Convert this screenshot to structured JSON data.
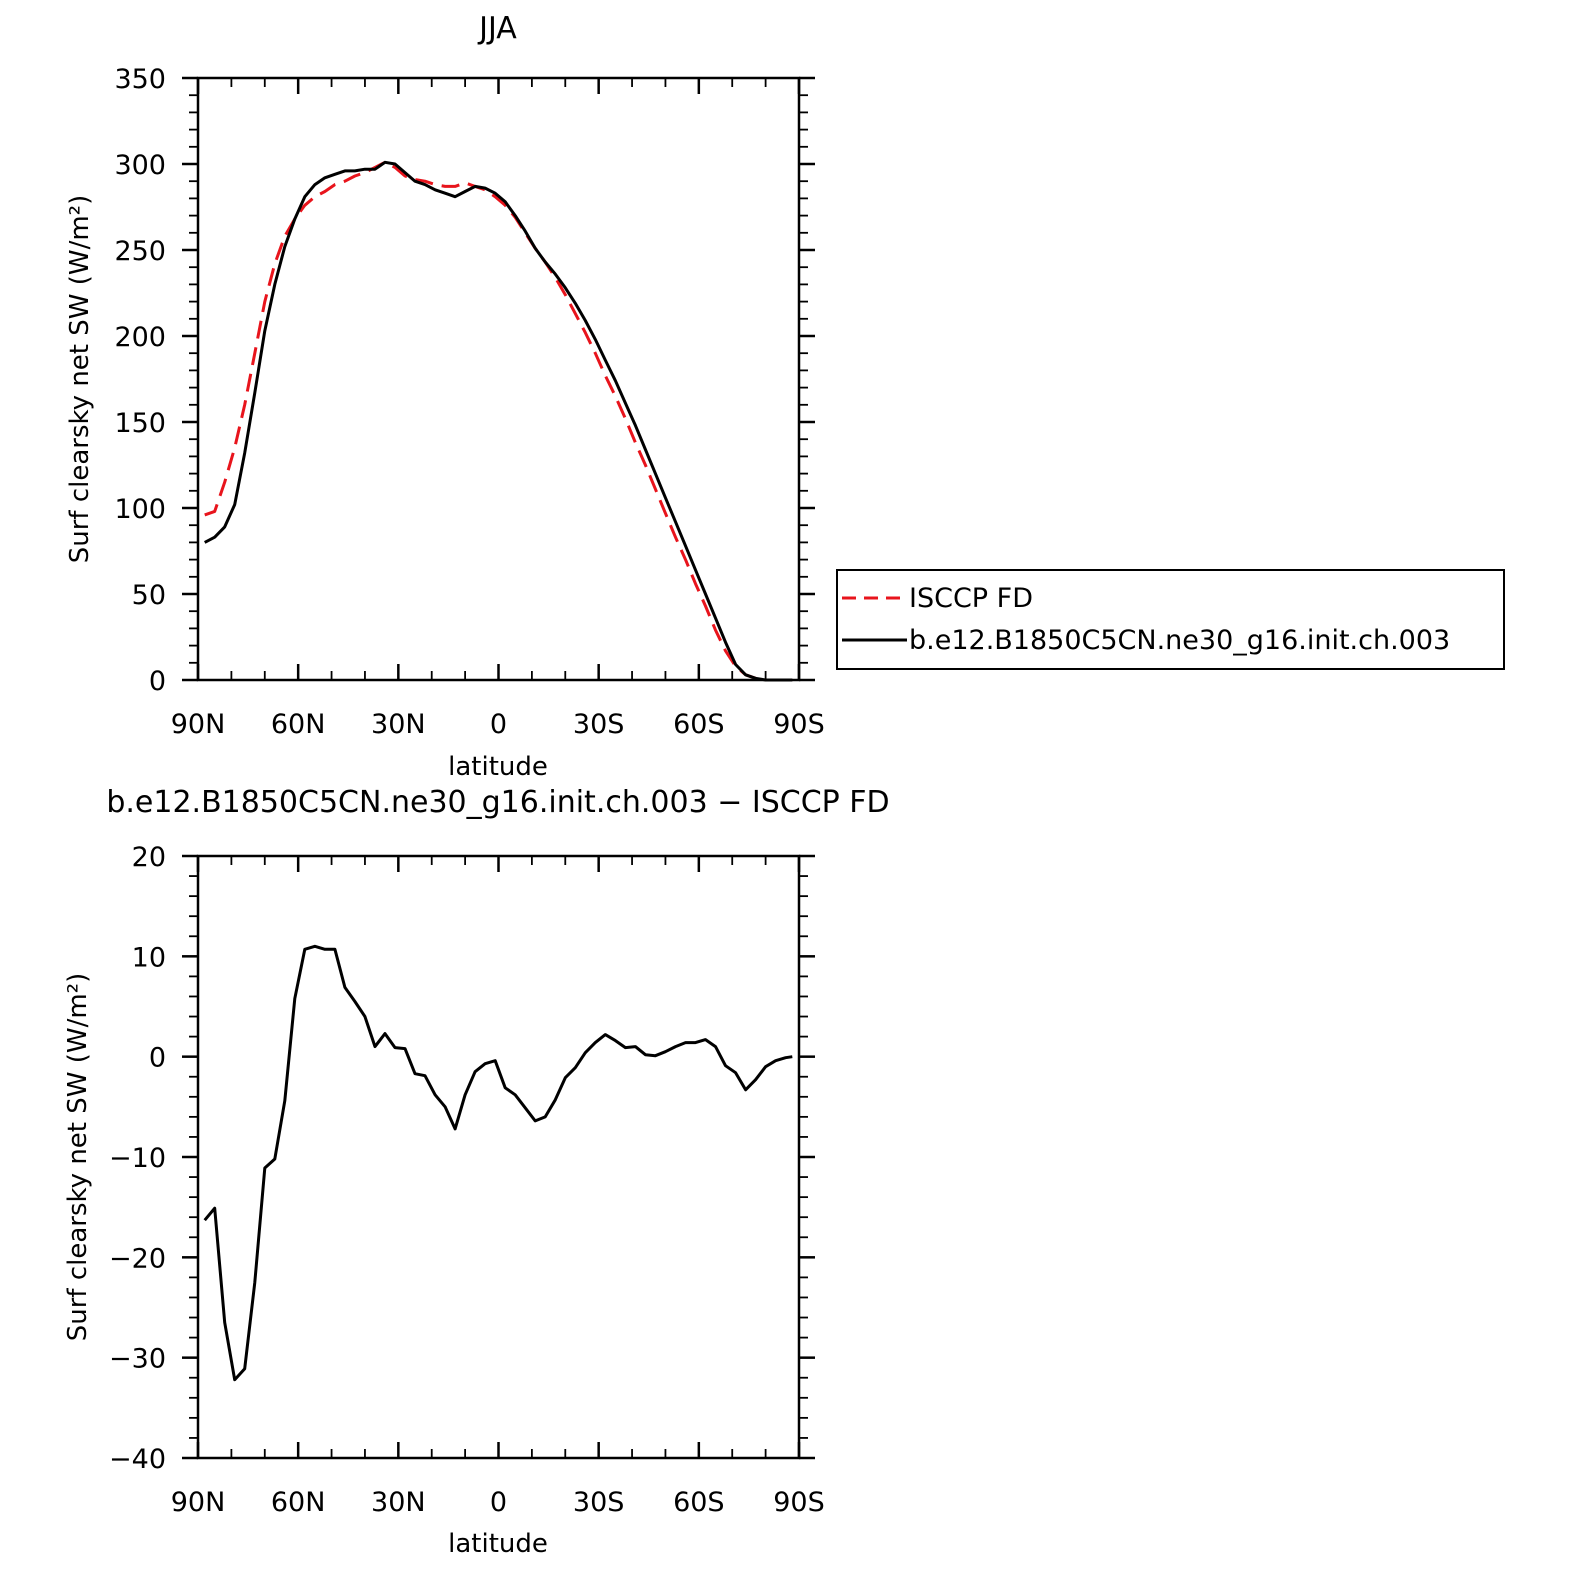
{
  "chart_data": [
    {
      "type": "line",
      "title": "JJA",
      "xlabel": "latitude",
      "ylabel": "Surf clearsky net SW (W/m²)",
      "x_ticks": [
        90,
        60,
        30,
        0,
        -30,
        -60,
        -90
      ],
      "x_tick_labels": [
        "90N",
        "60N",
        "30N",
        "0",
        "30S",
        "60S",
        "90S"
      ],
      "xlim": [
        90,
        -90
      ],
      "ylim": [
        0,
        350
      ],
      "y_ticks": [
        0,
        50,
        100,
        150,
        200,
        250,
        300,
        350
      ],
      "y_tick_labels": [
        "0",
        "50",
        "100",
        "150",
        "200",
        "250",
        "300",
        "350"
      ],
      "legend_position": "right",
      "series": [
        {
          "name": "ISCCP FD",
          "color": "#e8141c",
          "dash": "dashed",
          "x": [
            88,
            85,
            82,
            79,
            76,
            73,
            70,
            67,
            64,
            61,
            58,
            55,
            52,
            49,
            46,
            43,
            40,
            37,
            34,
            31,
            28,
            25,
            22,
            19,
            16,
            13,
            10,
            7,
            4,
            1,
            -2,
            -5,
            -8,
            -11,
            -14,
            -17,
            -20,
            -23,
            -26,
            -29,
            -32,
            -35,
            -38,
            -41,
            -44,
            -47,
            -50,
            -53,
            -56,
            -59,
            -62,
            -65,
            -68,
            -71,
            -74,
            -77,
            -80,
            -83,
            -86,
            -88
          ],
          "y": [
            96,
            98,
            115,
            135,
            160,
            190,
            220,
            242,
            258,
            268,
            276,
            281,
            284,
            288,
            290,
            293,
            295,
            298,
            301,
            298,
            293,
            291,
            290,
            288,
            287,
            287,
            289,
            287,
            285,
            281,
            276,
            269,
            260,
            251,
            243,
            234,
            224,
            213,
            202,
            190,
            177,
            165,
            152,
            138,
            125,
            111,
            97,
            83,
            70,
            56,
            43,
            29,
            17,
            8,
            3,
            1,
            0,
            0,
            0,
            0
          ]
        },
        {
          "name": "b.e12.B1850C5CN.ne30_g16.init.ch.003",
          "color": "#000000",
          "dash": "solid",
          "x": [
            88,
            85,
            82,
            79,
            76,
            73,
            70,
            67,
            64,
            61,
            58,
            55,
            52,
            49,
            46,
            43,
            40,
            37,
            34,
            31,
            28,
            25,
            22,
            19,
            16,
            13,
            10,
            7,
            4,
            1,
            -2,
            -5,
            -8,
            -11,
            -14,
            -17,
            -20,
            -23,
            -26,
            -29,
            -32,
            -35,
            -38,
            -41,
            -44,
            -47,
            -50,
            -53,
            -56,
            -59,
            -62,
            -65,
            -68,
            -71,
            -74,
            -77,
            -80,
            -83,
            -86,
            -88
          ],
          "y": [
            80,
            83,
            89,
            102,
            132,
            167,
            203,
            230,
            252,
            268,
            281,
            288,
            292,
            294,
            296,
            296,
            297,
            297,
            301,
            300,
            295,
            290,
            288,
            285,
            283,
            281,
            284,
            287,
            286,
            283,
            278,
            270,
            261,
            251,
            243,
            236,
            228,
            219,
            209,
            198,
            186,
            174,
            161,
            148,
            134,
            120,
            106,
            92,
            78,
            64,
            50,
            36,
            22,
            9,
            3,
            1,
            0,
            0,
            0,
            0
          ]
        }
      ]
    },
    {
      "type": "line",
      "title": "b.e12.B1850C5CN.ne30_g16.init.ch.003 − ISCCP FD",
      "xlabel": "latitude",
      "ylabel": "Surf clearsky net SW (W/m²)",
      "x_ticks": [
        90,
        60,
        30,
        0,
        -30,
        -60,
        -90
      ],
      "x_tick_labels": [
        "90N",
        "60N",
        "30N",
        "0",
        "30S",
        "60S",
        "90S"
      ],
      "xlim": [
        90,
        -90
      ],
      "ylim": [
        -40,
        20
      ],
      "y_ticks": [
        -40,
        -30,
        -20,
        -10,
        0,
        10,
        20
      ],
      "y_tick_labels": [
        "−40",
        "−30",
        "−20",
        "−10",
        "0",
        "10",
        "20"
      ],
      "series": [
        {
          "color": "#000000",
          "dash": "solid",
          "x": [
            88,
            85,
            82,
            79,
            76,
            73,
            70,
            67,
            64,
            61,
            58,
            55,
            52,
            49,
            46,
            43,
            40,
            37,
            34,
            31,
            28,
            25,
            22,
            19,
            16,
            13,
            10,
            7,
            4,
            1,
            -2,
            -5,
            -8,
            -11,
            -14,
            -17,
            -20,
            -23,
            -26,
            -29,
            -32,
            -35,
            -38,
            -41,
            -44,
            -47,
            -50,
            -53,
            -56,
            -59,
            -62,
            -65,
            -68,
            -71,
            -74,
            -77,
            -80,
            -83,
            -86,
            -88
          ],
          "y": [
            -16.3,
            -15.1,
            -26.5,
            -32.2,
            -31.1,
            -22.5,
            -11.1,
            -10.2,
            -4.4,
            5.8,
            10.7,
            11.0,
            10.7,
            10.7,
            6.9,
            5.5,
            4.0,
            1.0,
            2.3,
            0.9,
            0.8,
            -1.7,
            -1.9,
            -3.8,
            -5.0,
            -7.2,
            -3.8,
            -1.5,
            -0.7,
            -0.4,
            -3.1,
            -3.8,
            -5.1,
            -6.4,
            -6.0,
            -4.3,
            -2.1,
            -1.1,
            0.4,
            1.4,
            2.2,
            1.6,
            0.9,
            1.0,
            0.2,
            0.1,
            0.5,
            1.0,
            1.4,
            1.4,
            1.7,
            1.0,
            -0.9,
            -1.6,
            -3.3,
            -2.3,
            -1.0,
            -0.4,
            -0.1,
            0.0
          ]
        }
      ]
    }
  ]
}
